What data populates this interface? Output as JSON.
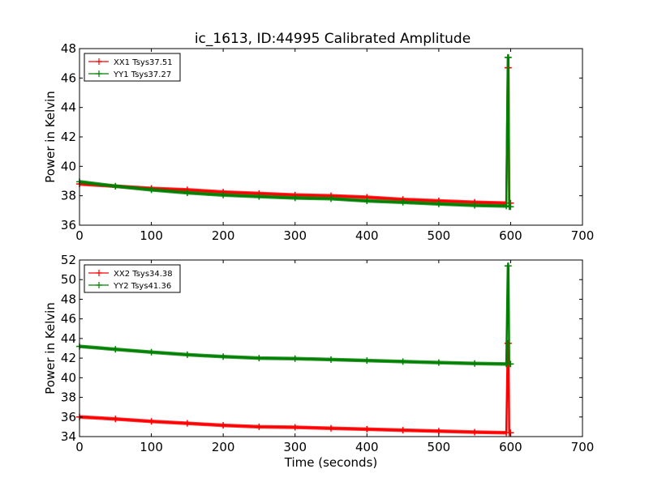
{
  "title": "ic_1613, ID:44995 Calibrated Amplitude",
  "colors": {
    "red": "#ff0000",
    "green": "#008000"
  },
  "chart_data": [
    {
      "type": "line",
      "ylabel": "Power in Kelvin",
      "xlabel": "",
      "xlim": [
        0,
        700
      ],
      "ylim": [
        36,
        48
      ],
      "xticks": [
        "0",
        "100",
        "200",
        "300",
        "400",
        "500",
        "600",
        "700"
      ],
      "yticks": [
        "36",
        "38",
        "40",
        "42",
        "44",
        "46",
        "48"
      ],
      "legend_position": "top-left",
      "series": [
        {
          "name": "XX1 Tsys37.51",
          "color": "#ff0000",
          "x": [
            0,
            50,
            100,
            150,
            200,
            250,
            300,
            350,
            400,
            450,
            500,
            550,
            594,
            596,
            597,
            598,
            600
          ],
          "y": [
            38.8,
            38.65,
            38.5,
            38.4,
            38.25,
            38.15,
            38.05,
            38.0,
            37.9,
            37.75,
            37.65,
            37.55,
            37.5,
            46.7,
            46.7,
            37.5,
            37.5
          ]
        },
        {
          "name": "YY1 Tsys37.27",
          "color": "#008000",
          "x": [
            0,
            50,
            100,
            150,
            200,
            250,
            300,
            350,
            400,
            450,
            500,
            550,
            594,
            596,
            597,
            598,
            600
          ],
          "y": [
            38.95,
            38.65,
            38.4,
            38.2,
            38.05,
            37.95,
            37.85,
            37.8,
            37.65,
            37.55,
            37.45,
            37.35,
            37.3,
            47.4,
            47.4,
            37.25,
            37.25
          ]
        }
      ]
    },
    {
      "type": "line",
      "ylabel": "Power in Kelvin",
      "xlabel": "Time (seconds)",
      "xlim": [
        0,
        700
      ],
      "ylim": [
        34,
        52
      ],
      "xticks": [
        "0",
        "100",
        "200",
        "300",
        "400",
        "500",
        "600",
        "700"
      ],
      "yticks": [
        "34",
        "36",
        "38",
        "40",
        "42",
        "44",
        "46",
        "48",
        "50",
        "52"
      ],
      "legend_position": "top-left",
      "series": [
        {
          "name": "XX2 Tsys34.38",
          "color": "#ff0000",
          "x": [
            0,
            50,
            100,
            150,
            200,
            250,
            300,
            350,
            400,
            450,
            500,
            550,
            594,
            596,
            597,
            598,
            600
          ],
          "y": [
            36.0,
            35.8,
            35.55,
            35.35,
            35.15,
            35.0,
            34.95,
            34.85,
            34.75,
            34.65,
            34.55,
            34.45,
            34.4,
            43.5,
            43.5,
            34.4,
            34.4
          ]
        },
        {
          "name": "YY2 Tsys41.36",
          "color": "#008000",
          "x": [
            0,
            50,
            100,
            150,
            200,
            250,
            300,
            350,
            400,
            450,
            500,
            550,
            594,
            596,
            597,
            598,
            600
          ],
          "y": [
            43.2,
            42.9,
            42.6,
            42.35,
            42.15,
            42.0,
            41.95,
            41.85,
            41.75,
            41.65,
            41.55,
            41.45,
            41.4,
            51.4,
            51.4,
            41.4,
            41.4
          ]
        }
      ]
    }
  ]
}
